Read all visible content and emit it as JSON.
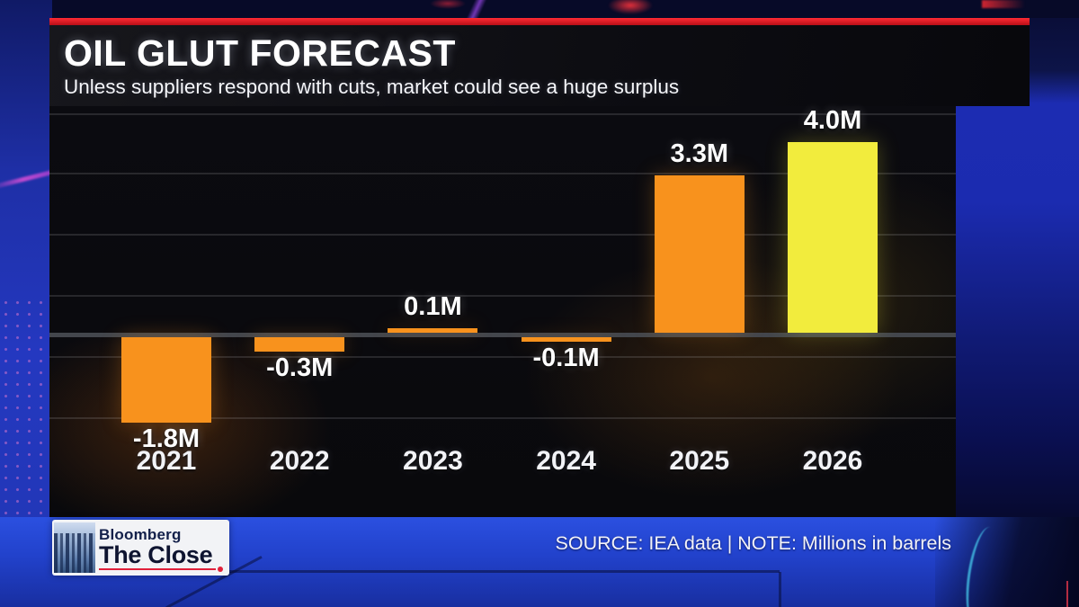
{
  "header": {
    "title": "OIL GLUT FORECAST",
    "subtitle": "Unless suppliers respond with cuts, market could see a huge surplus"
  },
  "footer": {
    "source_note": "SOURCE: IEA data | NOTE: Millions in barrels"
  },
  "logo": {
    "brand": "Bloomberg",
    "show": "The Close"
  },
  "colors": {
    "bar_orange": "#F8921D",
    "bar_yellow": "#F2EC3D",
    "accent_red": "#D8202B",
    "background_blue": "#1B2BB0",
    "panel_black": "#0A0A0D"
  },
  "chart_data": {
    "type": "bar",
    "title": "OIL GLUT FORECAST",
    "subtitle": "Unless suppliers respond with cuts, market could see a huge surplus",
    "categories": [
      "2021",
      "2022",
      "2023",
      "2024",
      "2025",
      "2026"
    ],
    "values": [
      -1.8,
      -0.3,
      0.1,
      -0.1,
      3.3,
      4.0
    ],
    "value_labels": [
      "-1.8M",
      "-0.3M",
      "0.1M",
      "-0.1M",
      "3.3M",
      "4.0M"
    ],
    "bar_colors": [
      "#F8921D",
      "#F8921D",
      "#F8921D",
      "#F8921D",
      "#F8921D",
      "#F2EC3D"
    ],
    "unit": "Millions of barrels",
    "baseline": 0,
    "ylim": [
      -2.6,
      4.8
    ],
    "grid": "horizontal",
    "legend": "none",
    "source": "IEA data",
    "note": "Millions in barrels"
  }
}
